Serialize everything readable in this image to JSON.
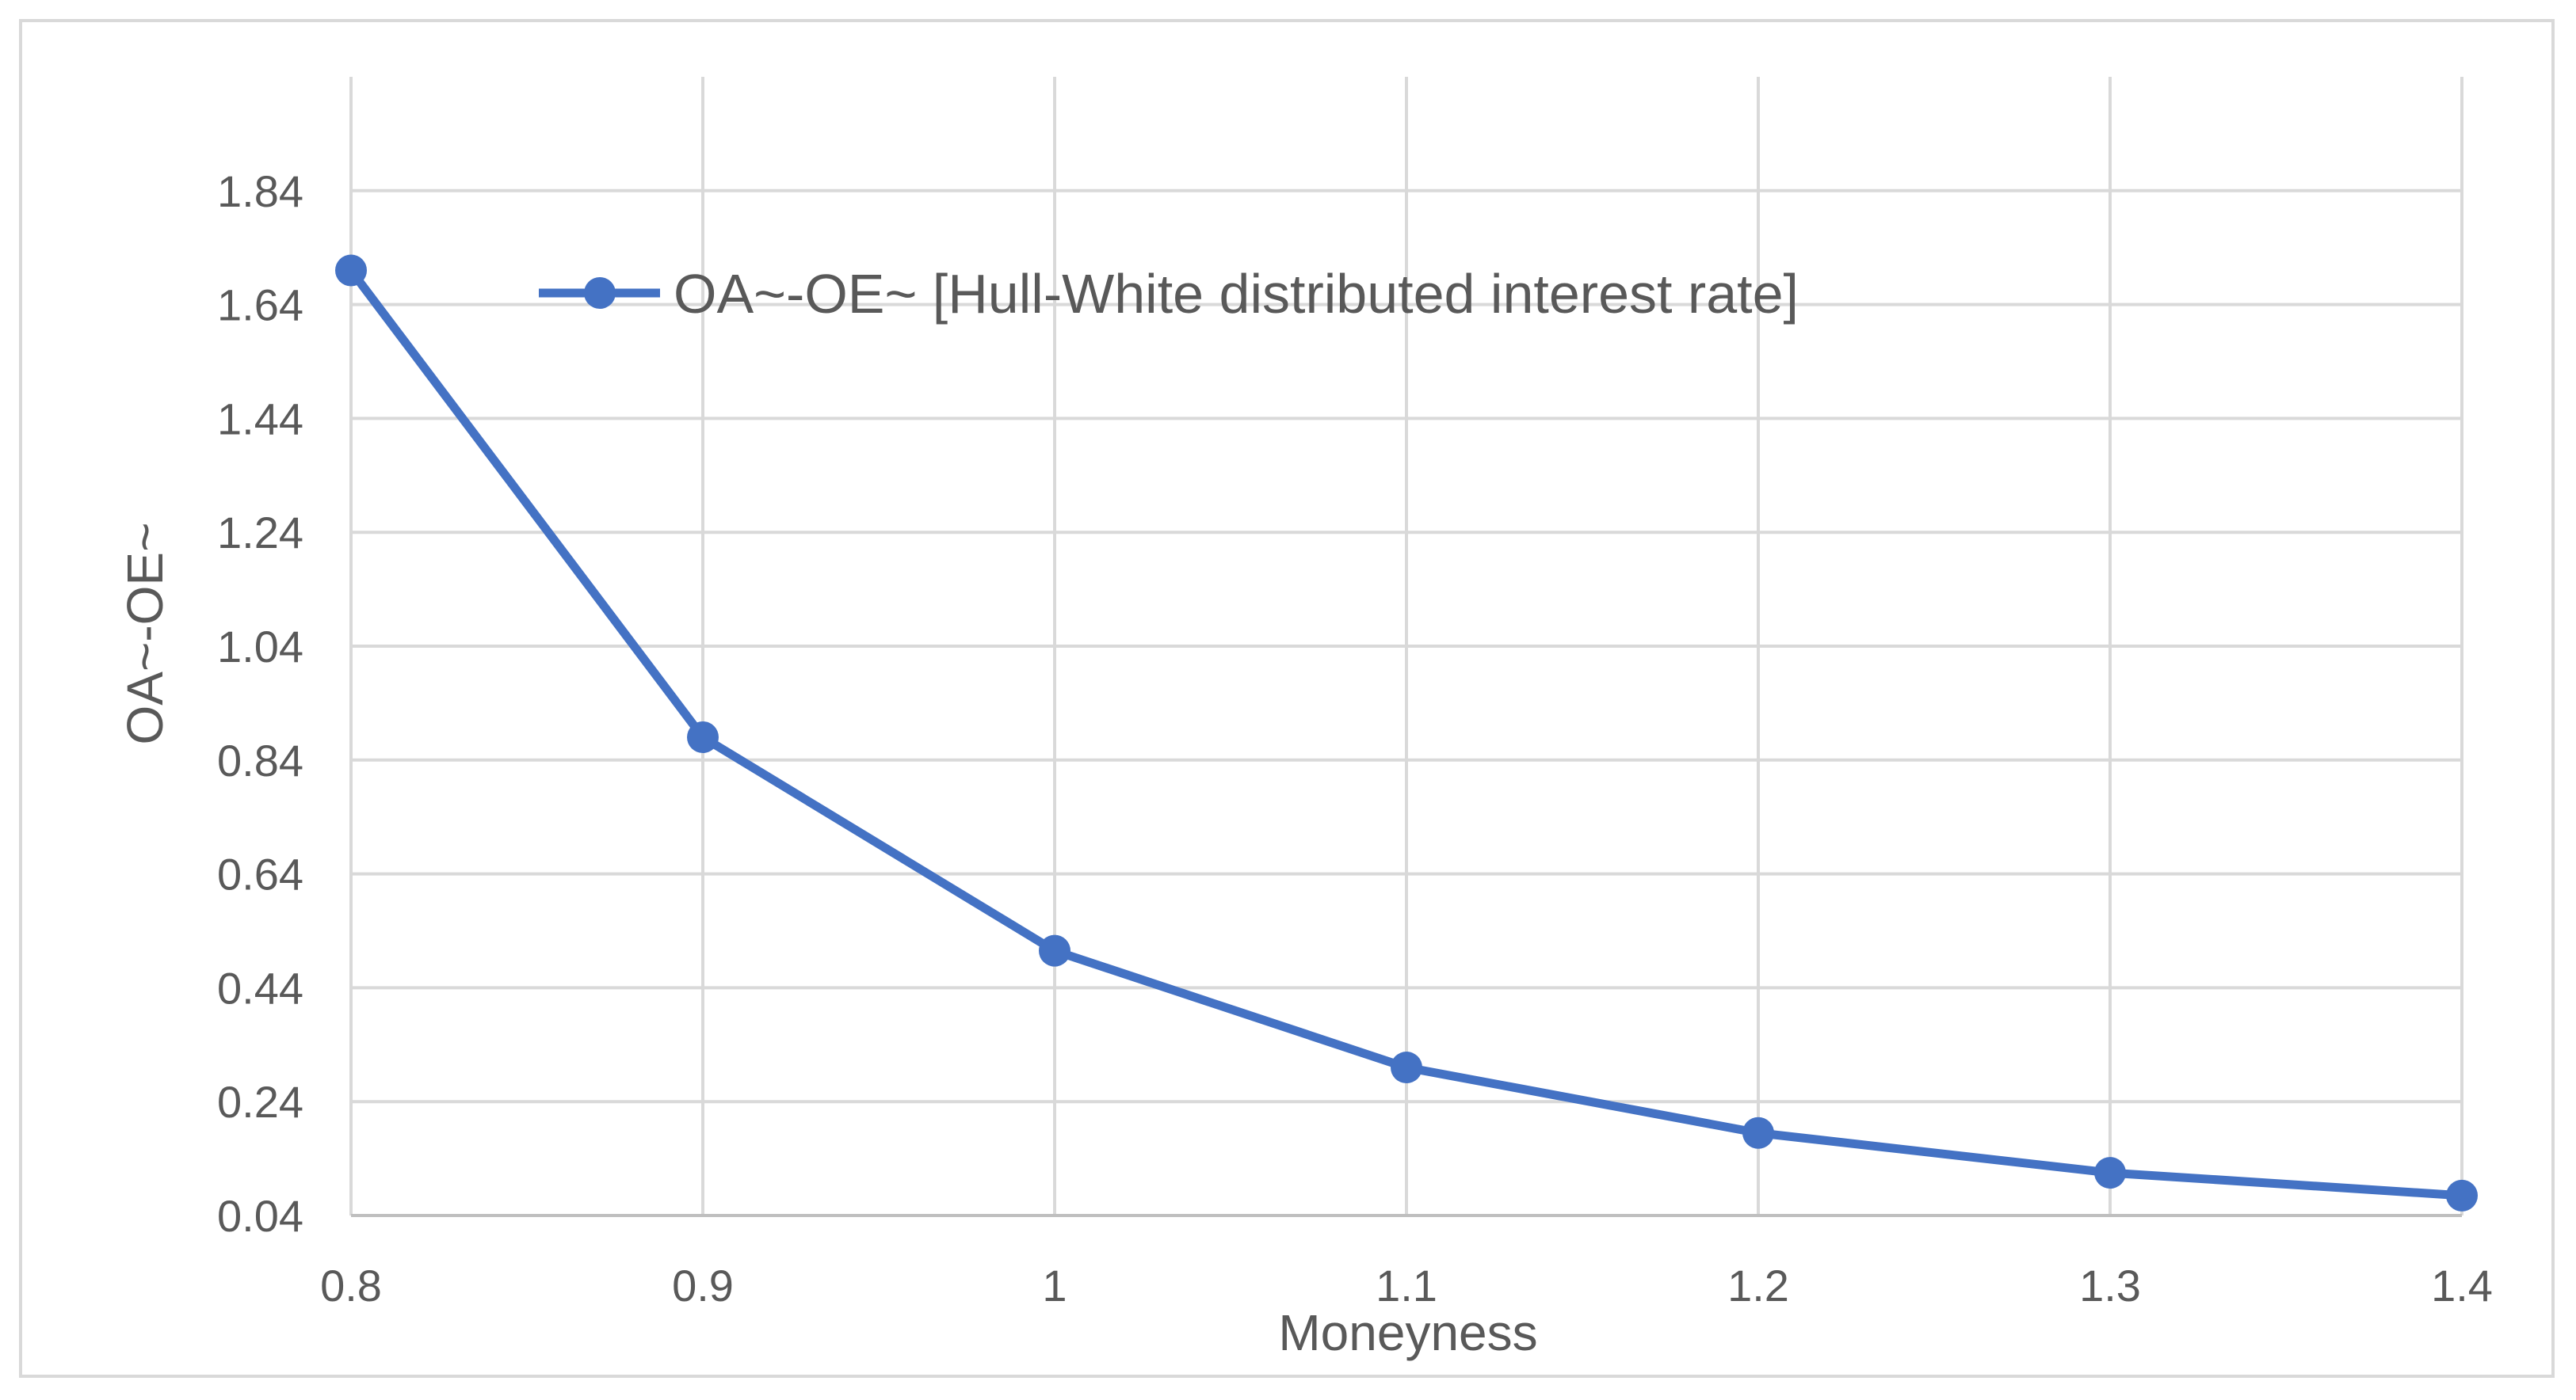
{
  "chart_data": {
    "type": "line",
    "title": "",
    "xlabel": "Moneyness",
    "ylabel": "OA~-OE~",
    "x": [
      0.8,
      0.9,
      1,
      1.1,
      1.2,
      1.3,
      1.4
    ],
    "x_tick_labels": [
      "0.8",
      "0.9",
      "1",
      "1.1",
      "1.2",
      "1.3",
      "1.4"
    ],
    "y_ticks": [
      0.04,
      0.24,
      0.44,
      0.64,
      0.84,
      1.04,
      1.24,
      1.44,
      1.64,
      1.84
    ],
    "y_tick_labels": [
      "0.04",
      "0.24",
      "0.44",
      "0.64",
      "0.84",
      "1.04",
      "1.24",
      "1.44",
      "1.64",
      "1.84"
    ],
    "xlim": [
      0.8,
      1.4
    ],
    "ylim": [
      0.04,
      2.04
    ],
    "grid": true,
    "legend_position": "top-left",
    "series": [
      {
        "name": "OA~-OE~ [Hull-White distributed interest rate]",
        "values": [
          1.7,
          0.88,
          0.505,
          0.3,
          0.185,
          0.115,
          0.075
        ],
        "color": "#4472c4"
      }
    ]
  }
}
